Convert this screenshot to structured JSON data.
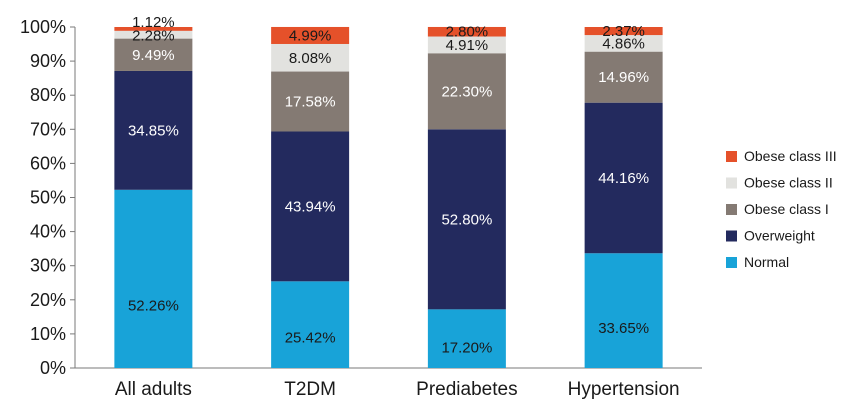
{
  "chart_data": {
    "type": "bar",
    "stacked": true,
    "categories": [
      "All adults",
      "T2DM",
      "Prediabetes",
      "Hypertension"
    ],
    "series": [
      {
        "name": "Normal",
        "color": "#18a3d8",
        "values": [
          52.26,
          25.42,
          17.2,
          33.65
        ],
        "labels": [
          "52.26%",
          "25.42%",
          "17.20%",
          "33.65%"
        ],
        "label_color": "#1a1a1a"
      },
      {
        "name": "Overweight",
        "color": "#232a5e",
        "values": [
          34.85,
          43.94,
          52.8,
          44.16
        ],
        "labels": [
          "34.85%",
          "43.94%",
          "52.80%",
          "44.16%"
        ],
        "label_color": "#ffffff"
      },
      {
        "name": "Obese class I",
        "color": "#847a73",
        "values": [
          9.49,
          17.58,
          22.3,
          14.96
        ],
        "labels": [
          "9.49%",
          "17.58%",
          "22.30%",
          "14.96%"
        ],
        "label_color": "#ffffff"
      },
      {
        "name": "Obese class II",
        "color": "#e2e2df",
        "values": [
          2.28,
          8.08,
          4.91,
          4.86
        ],
        "labels": [
          "2.28%",
          "8.08%",
          "4.91%",
          "4.86%"
        ],
        "label_color": "#1a1a1a"
      },
      {
        "name": "Obese class III",
        "color": "#e5512a",
        "values": [
          1.12,
          4.99,
          2.8,
          2.37
        ],
        "labels": [
          "1.12%",
          "4.99%",
          "2.80%",
          "2.37%"
        ],
        "label_color": "#1a1a1a"
      }
    ],
    "y_ticks": [
      "0%",
      "10%",
      "20%",
      "30%",
      "40%",
      "50%",
      "60%",
      "70%",
      "80%",
      "90%",
      "100%"
    ],
    "ylim": [
      0,
      100
    ],
    "grid": false,
    "legend_position": "right",
    "title": "",
    "xlabel": "",
    "ylabel": ""
  }
}
